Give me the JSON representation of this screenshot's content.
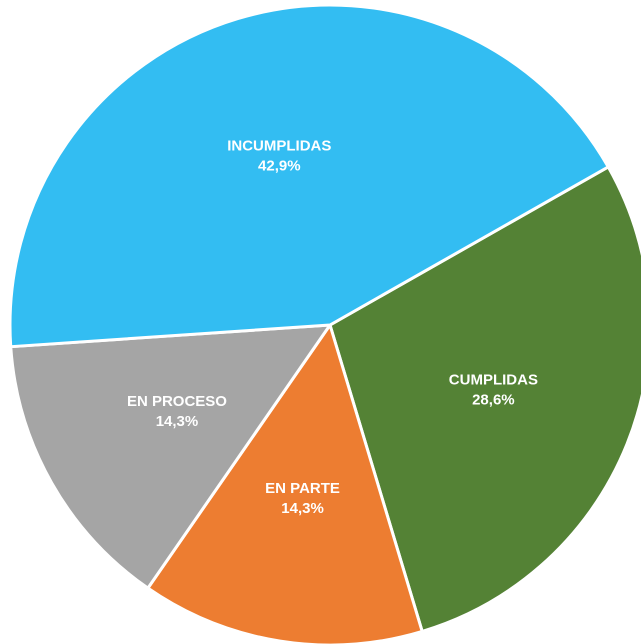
{
  "chart_data": {
    "type": "pie",
    "categories": [
      "CUMPLIDAS",
      "EN PARTE",
      "EN PROCESO",
      "INCUMPLIDAS"
    ],
    "values": [
      28.6,
      14.3,
      14.3,
      42.9
    ],
    "value_labels": [
      "28,6%",
      "14,3%",
      "14,3%",
      "42,9%"
    ],
    "colors": [
      "#548235",
      "#ed7d31",
      "#a5a5a5",
      "#33bdf2"
    ]
  }
}
